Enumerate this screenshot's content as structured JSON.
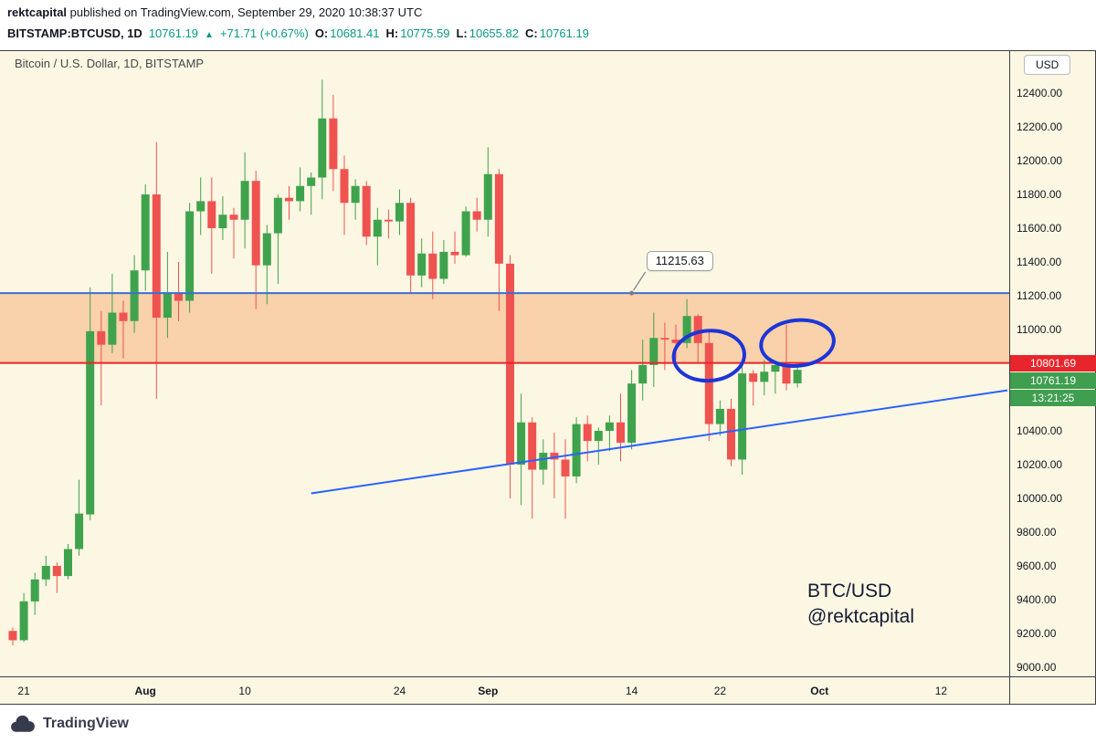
{
  "header": {
    "author": "rektcapital",
    "published": " published on TradingView.com, September 29, 2020 10:38:37 UTC",
    "symbol": "BITSTAMP:BTCUSD, 1D",
    "last_price": "10761.19",
    "direction_arrow": "▲",
    "change": "+71.71 (+0.67%)",
    "ohlc": [
      {
        "label": "O:",
        "value": "10681.41"
      },
      {
        "label": "H:",
        "value": "10775.59"
      },
      {
        "label": "L:",
        "value": "10655.82"
      },
      {
        "label": "C:",
        "value": "10761.19"
      }
    ]
  },
  "price_scale": {
    "currency_label": "USD",
    "support_label": "10801.69",
    "last_label": "10761.19",
    "countdown_label": "13:21:25"
  },
  "footer": {
    "brand": "TradingView"
  },
  "colors": {
    "background": "#fcf7e2",
    "candle_up": "#3fa34d",
    "candle_down": "#ef5350",
    "zone_fill": "rgba(245,147,82,0.38)",
    "resistance_line": "#3b6fd6",
    "support_line": "#e8242c",
    "trendline": "#2962ff",
    "circle": "#1d35d8",
    "label_up_bg": "#3f9e4f",
    "label_down_bg": "#e8242c",
    "header_up": "#089981",
    "leader": "#787b86"
  },
  "chart_data": {
    "type": "candlestick",
    "title": "Bitcoin / U.S. Dollar, 1D, BITSTAMP",
    "symbol": "BITSTAMP:BTCUSD",
    "interval": "1D",
    "exchange": "BITSTAMP",
    "currency": "USD",
    "ylim": [
      8950,
      12650
    ],
    "grid": false,
    "y_axis": {
      "ticks": [
        12400,
        12200,
        12000,
        11800,
        11600,
        11400,
        11200,
        11000,
        10400,
        10200,
        10000,
        9800,
        9600,
        9400,
        9200,
        9000
      ]
    },
    "x_axis": {
      "ticks": [
        {
          "label": "21",
          "index": 1,
          "bold": false
        },
        {
          "label": "Aug",
          "index": 12,
          "bold": true
        },
        {
          "label": "10",
          "index": 21,
          "bold": false
        },
        {
          "label": "24",
          "index": 35,
          "bold": false
        },
        {
          "label": "Sep",
          "index": 43,
          "bold": true
        },
        {
          "label": "14",
          "index": 56,
          "bold": false
        },
        {
          "label": "22",
          "index": 64,
          "bold": false
        },
        {
          "label": "Oct",
          "index": 73,
          "bold": true
        },
        {
          "label": "12",
          "index": 84,
          "bold": false
        }
      ]
    },
    "zone": {
      "top": 11215.63,
      "bottom": 10801.69
    },
    "levels": [
      {
        "price": 11215.63,
        "label": "11215.63",
        "role": "resistance"
      },
      {
        "price": 10801.69,
        "label": "10801.69",
        "role": "support"
      }
    ],
    "last": {
      "price": 10761.19,
      "countdown": "13:21:25"
    },
    "trendline": {
      "from": {
        "index": 27,
        "price": 10030
      },
      "to": {
        "index": 90,
        "price": 10640
      }
    },
    "annotations": {
      "callout": {
        "label": "11215.63",
        "price": 11215.63,
        "anchor_index": 56
      },
      "circles": [
        {
          "index": 63,
          "price": 10845,
          "rx_days": 3.2,
          "ry_price": 148,
          "tilt": -4
        },
        {
          "index": 71,
          "price": 10920,
          "rx_days": 3.3,
          "ry_price": 135,
          "tilt": -6
        }
      ],
      "text": {
        "line1": "BTC/USD",
        "line2": "@rektcapital"
      }
    },
    "candles": [
      [
        "2020-07-20",
        9215,
        9235,
        9130,
        9160
      ],
      [
        "2020-07-21",
        9160,
        9440,
        9150,
        9390
      ],
      [
        "2020-07-22",
        9390,
        9560,
        9310,
        9520
      ],
      [
        "2020-07-23",
        9520,
        9660,
        9480,
        9600
      ],
      [
        "2020-07-24",
        9600,
        9620,
        9440,
        9540
      ],
      [
        "2020-07-25",
        9540,
        9730,
        9520,
        9700
      ],
      [
        "2020-07-26",
        9700,
        10110,
        9660,
        9910
      ],
      [
        "2020-07-27",
        9905,
        11250,
        9870,
        10990
      ],
      [
        "2020-07-28",
        10990,
        11110,
        10550,
        10910
      ],
      [
        "2020-07-29",
        10910,
        11330,
        10860,
        11100
      ],
      [
        "2020-07-30",
        11100,
        11170,
        10830,
        11050
      ],
      [
        "2020-07-31",
        11050,
        11440,
        10980,
        11350
      ],
      [
        "2020-08-01",
        11350,
        11860,
        11230,
        11800
      ],
      [
        "2020-08-02",
        11800,
        12110,
        10590,
        11070
      ],
      [
        "2020-08-03",
        11070,
        11460,
        10950,
        11220
      ],
      [
        "2020-08-04",
        11220,
        11400,
        11050,
        11170
      ],
      [
        "2020-08-05",
        11170,
        11750,
        11100,
        11700
      ],
      [
        "2020-08-06",
        11700,
        11900,
        11560,
        11760
      ],
      [
        "2020-08-07",
        11760,
        11900,
        11330,
        11600
      ],
      [
        "2020-08-08",
        11600,
        11790,
        11530,
        11680
      ],
      [
        "2020-08-09",
        11680,
        11720,
        11420,
        11650
      ],
      [
        "2020-08-10",
        11650,
        12050,
        11480,
        11880
      ],
      [
        "2020-08-11",
        11880,
        11940,
        11120,
        11380
      ],
      [
        "2020-08-12",
        11380,
        11620,
        11150,
        11570
      ],
      [
        "2020-08-13",
        11570,
        11800,
        11270,
        11780
      ],
      [
        "2020-08-14",
        11780,
        11850,
        11650,
        11760
      ],
      [
        "2020-08-15",
        11760,
        11960,
        11700,
        11850
      ],
      [
        "2020-08-16",
        11850,
        11930,
        11680,
        11900
      ],
      [
        "2020-08-17",
        11900,
        12480,
        11770,
        12250
      ],
      [
        "2020-08-18",
        12250,
        12390,
        11820,
        11950
      ],
      [
        "2020-08-19",
        11950,
        12030,
        11560,
        11750
      ],
      [
        "2020-08-20",
        11750,
        11890,
        11650,
        11850
      ],
      [
        "2020-08-21",
        11850,
        11880,
        11500,
        11550
      ],
      [
        "2020-08-22",
        11550,
        11720,
        11380,
        11650
      ],
      [
        "2020-08-23",
        11650,
        11710,
        11540,
        11640
      ],
      [
        "2020-08-24",
        11640,
        11830,
        11560,
        11750
      ],
      [
        "2020-08-25",
        11750,
        11780,
        11210,
        11320
      ],
      [
        "2020-08-26",
        11320,
        11540,
        11250,
        11450
      ],
      [
        "2020-08-27",
        11450,
        11580,
        11180,
        11300
      ],
      [
        "2020-08-28",
        11300,
        11530,
        11270,
        11460
      ],
      [
        "2020-08-29",
        11460,
        11580,
        11390,
        11440
      ],
      [
        "2020-08-30",
        11440,
        11730,
        11430,
        11700
      ],
      [
        "2020-08-31",
        11700,
        11780,
        11580,
        11650
      ],
      [
        "2020-09-01",
        11650,
        12080,
        11550,
        11920
      ],
      [
        "2020-09-02",
        11920,
        11950,
        11110,
        11390
      ],
      [
        "2020-09-03",
        11390,
        11440,
        10000,
        10200
      ],
      [
        "2020-09-04",
        10200,
        10620,
        9960,
        10450
      ],
      [
        "2020-09-05",
        10450,
        10480,
        9880,
        10170
      ],
      [
        "2020-09-06",
        10170,
        10350,
        10080,
        10270
      ],
      [
        "2020-09-07",
        10270,
        10390,
        10000,
        10230
      ],
      [
        "2020-09-08",
        10230,
        10350,
        9880,
        10130
      ],
      [
        "2020-09-09",
        10130,
        10480,
        10090,
        10440
      ],
      [
        "2020-09-10",
        10440,
        10490,
        10220,
        10340
      ],
      [
        "2020-09-11",
        10340,
        10420,
        10200,
        10400
      ],
      [
        "2020-09-12",
        10400,
        10490,
        10280,
        10450
      ],
      [
        "2020-09-13",
        10450,
        10620,
        10220,
        10330
      ],
      [
        "2020-09-14",
        10330,
        10760,
        10290,
        10680
      ],
      [
        "2020-09-15",
        10680,
        10940,
        10580,
        10790
      ],
      [
        "2020-09-16",
        10790,
        11100,
        10660,
        10950
      ],
      [
        "2020-09-17",
        10950,
        11040,
        10760,
        10940
      ],
      [
        "2020-09-18",
        10940,
        11030,
        10820,
        10920
      ],
      [
        "2020-09-19",
        10920,
        11180,
        10890,
        11080
      ],
      [
        "2020-09-20",
        11080,
        11090,
        10800,
        10920
      ],
      [
        "2020-09-21",
        10920,
        10990,
        10340,
        10440
      ],
      [
        "2020-09-22",
        10440,
        10580,
        10370,
        10530
      ],
      [
        "2020-09-23",
        10530,
        10590,
        10190,
        10230
      ],
      [
        "2020-09-24",
        10230,
        10790,
        10140,
        10740
      ],
      [
        "2020-09-25",
        10740,
        10760,
        10550,
        10690
      ],
      [
        "2020-09-26",
        10690,
        10820,
        10610,
        10750
      ],
      [
        "2020-09-27",
        10750,
        10810,
        10620,
        10790
      ],
      [
        "2020-09-28",
        10790,
        11030,
        10640,
        10680
      ],
      [
        "2020-09-29",
        10681.41,
        10775.59,
        10655.82,
        10761.19
      ]
    ]
  }
}
